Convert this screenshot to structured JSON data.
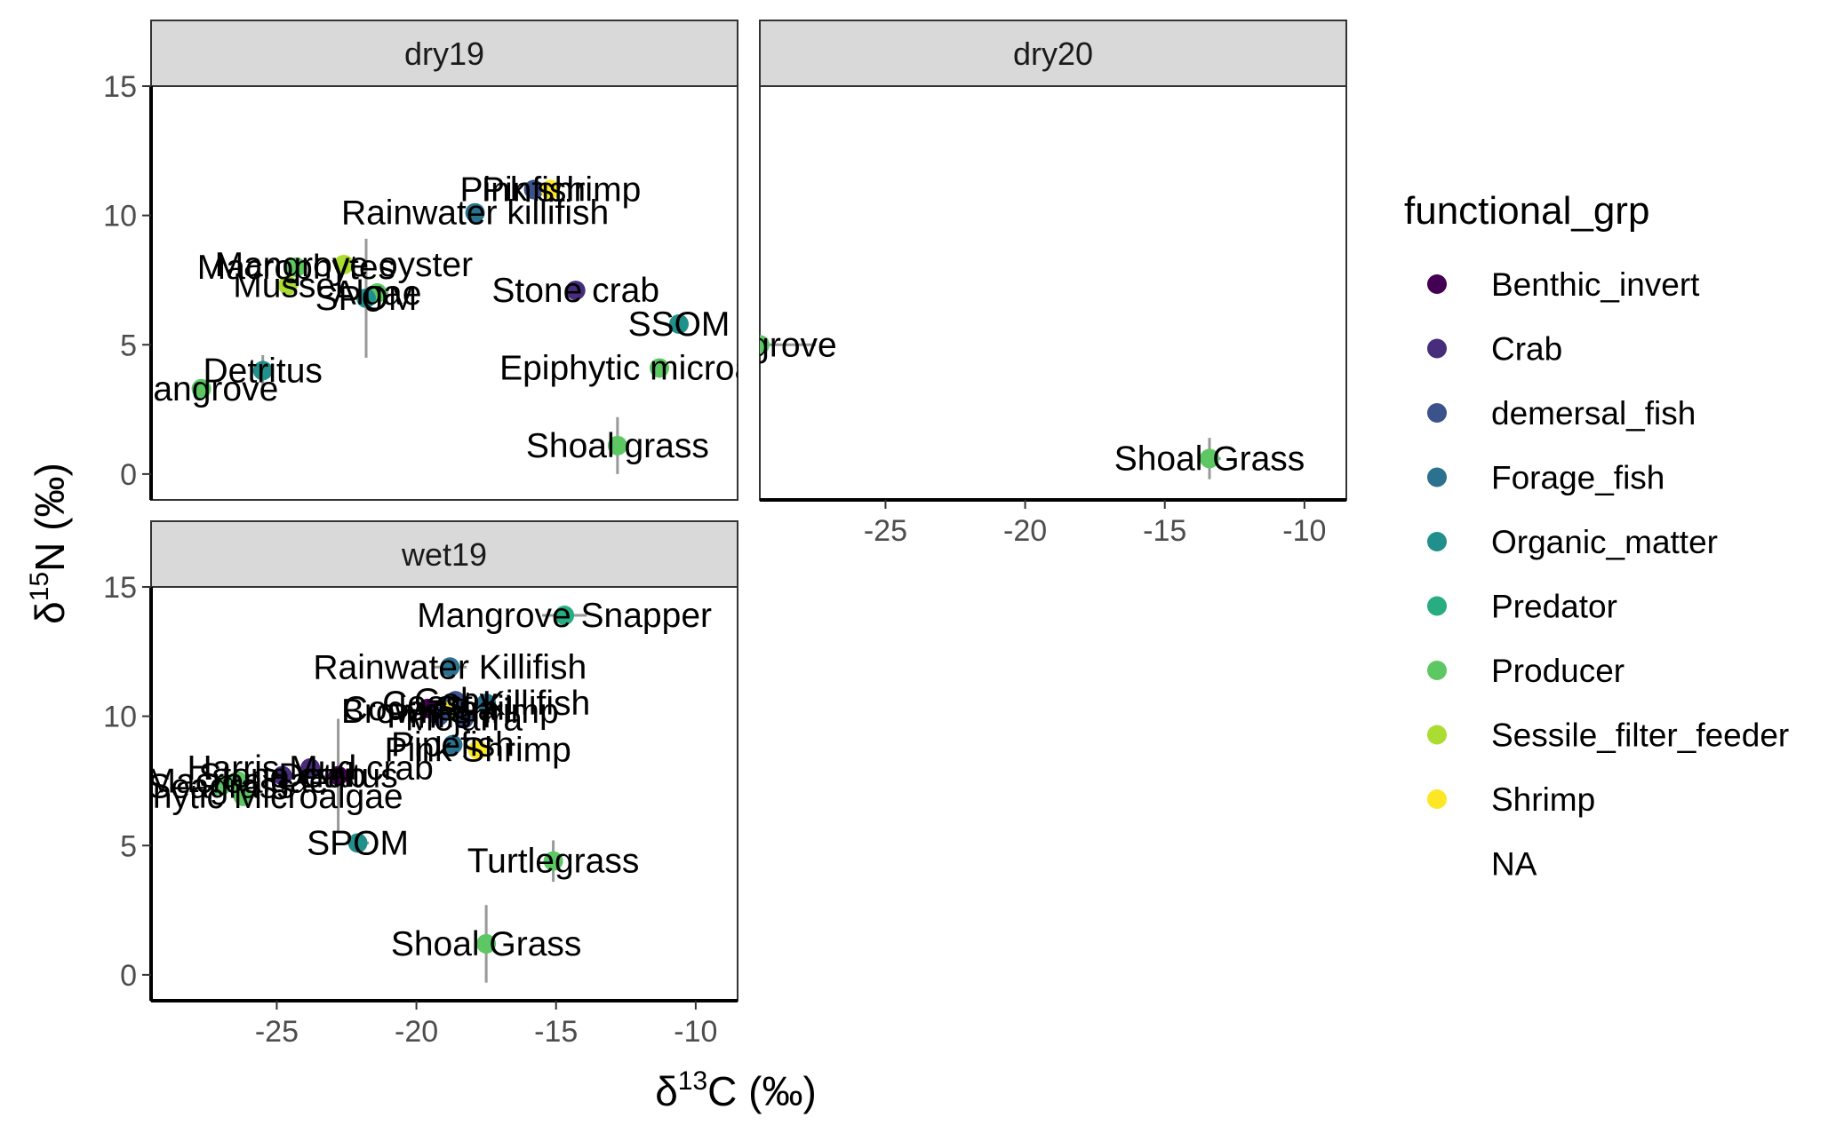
{
  "chart_data": {
    "type": "scatter",
    "x_label_prefix": "δ",
    "x_label_sup": "13",
    "x_label_suffix": "C (‰)",
    "y_label_prefix": "δ",
    "y_label_sup": "15",
    "y_label_suffix": "N (‰)",
    "xlim": [
      -29.5,
      -8.5
    ],
    "ylim": [
      -1,
      15
    ],
    "x_ticks": [
      -25,
      -20,
      -15,
      -10
    ],
    "y_ticks": [
      0,
      5,
      10,
      15
    ],
    "grid": false,
    "legend": {
      "title": "functional_grp",
      "placement": "right",
      "entries": [
        {
          "name": "Benthic_invert",
          "color": "#440154"
        },
        {
          "name": "Crab",
          "color": "#472D7B"
        },
        {
          "name": "demersal_fish",
          "color": "#3B528B"
        },
        {
          "name": "Forage_fish",
          "color": "#2C728E"
        },
        {
          "name": "Organic_matter",
          "color": "#21908C"
        },
        {
          "name": "Predator",
          "color": "#27AD81"
        },
        {
          "name": "Producer",
          "color": "#5DC863"
        },
        {
          "name": "Sessile_filter_feeder",
          "color": "#AADC32"
        },
        {
          "name": "Shrimp",
          "color": "#FDE725"
        },
        {
          "name": "NA",
          "color": null
        }
      ]
    },
    "panels": [
      {
        "name": "dry19",
        "points": [
          {
            "label": "Pinfish",
            "group": "demersal_fish",
            "x": -15.8,
            "y": 11.0,
            "xerr": 0.3,
            "yerr": 0.3
          },
          {
            "label": "Pink shrimp",
            "group": "Shrimp",
            "x": -15.2,
            "y": 11.0,
            "xerr": 0.3,
            "yerr": 0.3
          },
          {
            "label": "Rainwater killifish",
            "group": "Forage_fish",
            "x": -17.9,
            "y": 10.1,
            "xerr": 0.3,
            "yerr": 0.3
          },
          {
            "label": "Mangrove oyster",
            "group": "Sessile_filter_feeder",
            "x": -22.6,
            "y": 8.1,
            "xerr": 0.3,
            "yerr": 0.3
          },
          {
            "label": "Macrophytes",
            "group": "Producer",
            "x": -24.3,
            "y": 8.0,
            "xerr": 0.3,
            "yerr": 0.3
          },
          {
            "label": "Mussel",
            "group": "Sessile_filter_feeder",
            "x": -24.6,
            "y": 7.3,
            "xerr": 0.3,
            "yerr": 0.3
          },
          {
            "label": "Algae",
            "group": "Producer",
            "x": -21.4,
            "y": 7.0,
            "xerr": 0.4,
            "yerr": 0.3
          },
          {
            "label": "SPOM",
            "group": "Organic_matter",
            "x": -21.8,
            "y": 6.8,
            "xerr": 0.5,
            "yerr": 2.3
          },
          {
            "label": "Stone crab",
            "group": "Crab",
            "x": -14.3,
            "y": 7.1,
            "xerr": 0.3,
            "yerr": 0.3
          },
          {
            "label": "SSOM",
            "group": "Organic_matter",
            "x": -10.6,
            "y": 5.8,
            "xerr": 0.3,
            "yerr": 0.3
          },
          {
            "label": "Epiphytic microalgae",
            "group": "Producer",
            "x": -11.3,
            "y": 4.1,
            "xerr": 0.3,
            "yerr": 0.3
          },
          {
            "label": "Detritus",
            "group": "Organic_matter",
            "x": -25.5,
            "y": 4.0,
            "xerr": 0.4,
            "yerr": 0.6
          },
          {
            "label": "Mangrove",
            "group": "Producer",
            "x": -27.7,
            "y": 3.3,
            "xerr": 0.3,
            "yerr": 0.3
          },
          {
            "label": "Shoal grass",
            "group": "Producer",
            "x": -12.8,
            "y": 1.1,
            "xerr": 0.3,
            "yerr": 1.1
          }
        ]
      },
      {
        "name": "dry20",
        "points": [
          {
            "label": "Mangrove",
            "group": "Producer",
            "x": -29.5,
            "y": 5.0,
            "xerr": 2.0,
            "yerr": 0.2
          },
          {
            "label": "Shoal Grass",
            "group": "Producer",
            "x": -13.4,
            "y": 0.6,
            "xerr": 0.4,
            "yerr": 0.8
          }
        ]
      },
      {
        "name": "wet19",
        "points": [
          {
            "label": "Mangrove Snapper",
            "group": "Predator",
            "x": -14.7,
            "y": 13.9,
            "xerr": 0.8,
            "yerr": 0.3
          },
          {
            "label": "Rainwater Killifish",
            "group": "Forage_fish",
            "x": -18.8,
            "y": 11.9,
            "xerr": 0.6,
            "yerr": 0.3
          },
          {
            "label": "Goby",
            "group": "demersal_fish",
            "x": -18.6,
            "y": 10.6,
            "xerr": 0.3,
            "yerr": 0.3
          },
          {
            "label": "Coast Killifish",
            "group": "Forage_fish",
            "x": -17.5,
            "y": 10.5,
            "xerr": 0.3,
            "yerr": 0.3
          },
          {
            "label": "Code Snail",
            "group": "Benthic_invert",
            "x": -19.6,
            "y": 10.3,
            "xerr": 0.3,
            "yerr": 0.3
          },
          {
            "label": "Brown Shrimp",
            "group": "Shrimp",
            "x": -18.8,
            "y": 10.2,
            "xerr": 0.3,
            "yerr": 0.3
          },
          {
            "label": "Pinfish",
            "group": "demersal_fish",
            "x": -19.2,
            "y": 10.0,
            "xerr": 0.3,
            "yerr": 0.3
          },
          {
            "label": "Mojarra",
            "group": "demersal_fish",
            "x": -18.3,
            "y": 9.9,
            "xerr": 0.3,
            "yerr": 0.3
          },
          {
            "label": "Pink Shrimp",
            "group": "Shrimp",
            "x": -17.8,
            "y": 8.7,
            "xerr": 0.3,
            "yerr": 0.3
          },
          {
            "label": "Pipefish",
            "group": "Forage_fish",
            "x": -18.7,
            "y": 8.9,
            "xerr": 0.3,
            "yerr": 0.3
          },
          {
            "label": "Harris Mud crab",
            "group": "Crab",
            "x": -23.8,
            "y": 8.0,
            "xerr": 0.4,
            "yerr": 0.3
          },
          {
            "label": "Stone crab",
            "group": "Crab",
            "x": -24.8,
            "y": 7.7,
            "xerr": 0.4,
            "yerr": 0.3
          },
          {
            "label": "Detritus",
            "group": "Benthic_invert",
            "x": -22.8,
            "y": 7.7,
            "xerr": 0.5,
            "yerr": 2.2
          },
          {
            "label": "Macroalgae",
            "group": "Producer",
            "x": -26.4,
            "y": 7.5,
            "xerr": 0.5,
            "yerr": 0.3
          },
          {
            "label": "Seagrass",
            "group": "Producer",
            "x": -27.0,
            "y": 7.3,
            "xerr": 0.4,
            "yerr": 0.3
          },
          {
            "label": "Epiphytic Microalgae",
            "group": "Producer",
            "x": -26.2,
            "y": 6.9,
            "xerr": 0.4,
            "yerr": 0.3
          },
          {
            "label": "SPOM",
            "group": "Organic_matter",
            "x": -22.1,
            "y": 5.1,
            "xerr": 0.4,
            "yerr": 0.3
          },
          {
            "label": "Turtlegrass",
            "group": "Producer",
            "x": -15.1,
            "y": 4.4,
            "xerr": 0.3,
            "yerr": 0.8
          },
          {
            "label": "Shoal Grass",
            "group": "Producer",
            "x": -17.5,
            "y": 1.2,
            "xerr": 0.3,
            "yerr": 1.5
          }
        ]
      }
    ]
  }
}
